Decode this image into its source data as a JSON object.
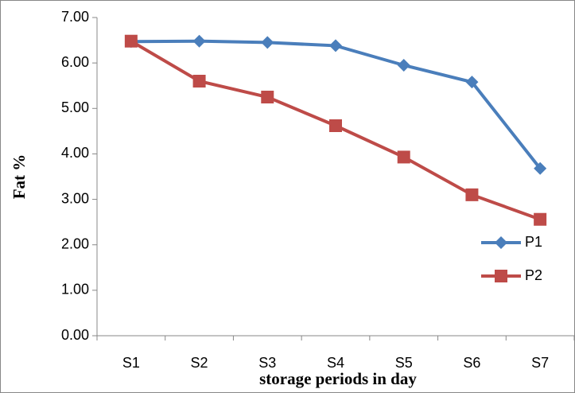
{
  "chart_data": {
    "type": "line",
    "x_label": "storage periods in day",
    "y_label": "Fat %",
    "categories": [
      "S1",
      "S2",
      "S3",
      "S4",
      "S5",
      "S6",
      "S7"
    ],
    "series": [
      {
        "name": "P1",
        "color": "#4a7ebb",
        "marker": "diamond",
        "values": [
          6.47,
          6.48,
          6.45,
          6.38,
          5.95,
          5.58,
          3.68
        ]
      },
      {
        "name": "P2",
        "color": "#be4b48",
        "marker": "square",
        "values": [
          6.48,
          5.6,
          5.25,
          4.62,
          3.93,
          3.1,
          2.56
        ]
      }
    ],
    "ylim": [
      0,
      7
    ],
    "yticks": [
      {
        "value": 0,
        "label": "0.00"
      },
      {
        "value": 1,
        "label": "1.00"
      },
      {
        "value": 2,
        "label": "2.00"
      },
      {
        "value": 3,
        "label": "3.00"
      },
      {
        "value": 4,
        "label": "4.00"
      },
      {
        "value": 5,
        "label": "5.00"
      },
      {
        "value": 6,
        "label": "6.00"
      },
      {
        "value": 7,
        "label": "7.00"
      }
    ],
    "grid": false,
    "legend": "right"
  }
}
